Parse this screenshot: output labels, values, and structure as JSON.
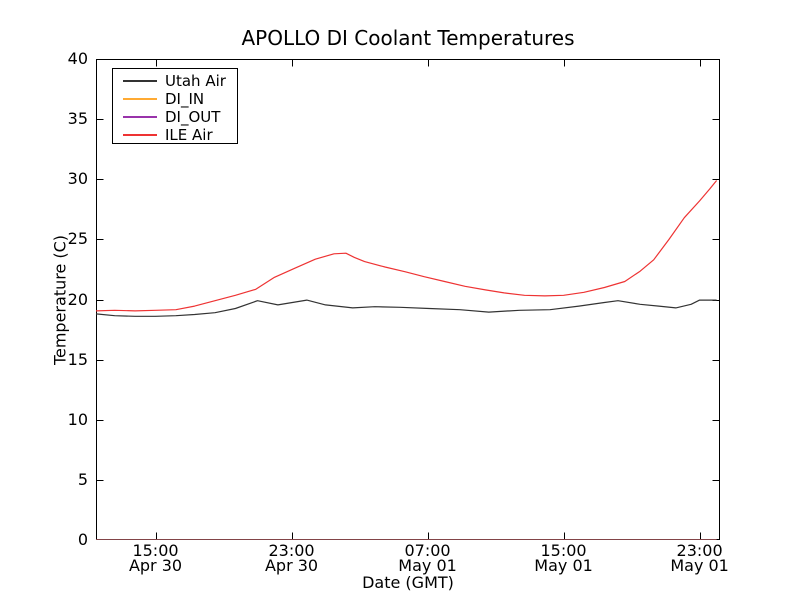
{
  "chart_data": {
    "type": "line",
    "title": "APOLLO DI Coolant Temperatures",
    "xlabel": "Date (GMT)",
    "ylabel": "Temperature (C)",
    "grid": false,
    "background_color": "#ffffff",
    "frame_color": "#000000",
    "x_axis": {
      "unit": "hours since Apr 30 00:00 GMT",
      "range": [
        11.5,
        48.2
      ],
      "major_ticks": [
        {
          "value": 15,
          "label": "15:00\nApr 30"
        },
        {
          "value": 23,
          "label": "23:00\nApr 30"
        },
        {
          "value": 31,
          "label": "07:00\nMay 01"
        },
        {
          "value": 39,
          "label": "15:00\nMay 01"
        },
        {
          "value": 47,
          "label": "23:00\nMay 01"
        }
      ]
    },
    "y_axis": {
      "range": [
        0,
        40
      ],
      "tick_step": 5,
      "ticks": [
        0,
        5,
        10,
        15,
        20,
        25,
        30,
        35,
        40
      ]
    },
    "legend": {
      "position": "upper-left",
      "entries": [
        "Utah Air",
        "DI_IN",
        "DI_OUT",
        "ILE Air"
      ]
    },
    "series": [
      {
        "name": "Utah Air",
        "color": "#333333",
        "opacity": 1,
        "x": [
          11.5,
          12.6,
          13.8,
          15.0,
          16.2,
          17.3,
          18.5,
          19.7,
          21.0,
          22.2,
          23.9,
          25.0,
          26.6,
          27.9,
          29.4,
          31.1,
          32.9,
          34.6,
          36.4,
          38.2,
          39.9,
          41.4,
          42.2,
          43.5,
          44.6,
          45.6,
          46.5,
          47.0,
          48.0
        ],
        "y": [
          18.8,
          18.65,
          18.6,
          18.6,
          18.65,
          18.75,
          18.9,
          19.25,
          19.9,
          19.55,
          19.95,
          19.55,
          19.3,
          19.4,
          19.35,
          19.25,
          19.15,
          18.95,
          19.1,
          19.15,
          19.45,
          19.75,
          19.9,
          19.6,
          19.45,
          19.3,
          19.6,
          19.95,
          19.95
        ]
      },
      {
        "name": "DI_IN",
        "color": "#ffaa33",
        "opacity": 0.9,
        "x": [
          11.5,
          48.0
        ],
        "y": [
          0,
          0
        ]
      },
      {
        "name": "DI_OUT",
        "color": "#9933aa",
        "opacity": 0.55,
        "x": [
          11.5,
          48.0
        ],
        "y": [
          0,
          0
        ]
      },
      {
        "name": "ILE Air",
        "color": "#ee3333",
        "opacity": 1,
        "x": [
          11.5,
          12.6,
          13.8,
          15.0,
          16.2,
          17.3,
          18.5,
          19.7,
          20.9,
          22.0,
          23.2,
          24.4,
          25.5,
          26.2,
          26.7,
          27.3,
          28.5,
          29.7,
          30.8,
          32.0,
          33.2,
          34.4,
          35.5,
          36.7,
          37.9,
          39.0,
          40.2,
          41.4,
          42.6,
          43.5,
          44.3,
          45.2,
          46.1,
          47.0,
          47.6,
          48.0
        ],
        "y": [
          19.05,
          19.1,
          19.05,
          19.1,
          19.15,
          19.45,
          19.9,
          20.35,
          20.85,
          21.85,
          22.6,
          23.35,
          23.8,
          23.85,
          23.5,
          23.15,
          22.7,
          22.3,
          21.9,
          21.5,
          21.1,
          20.8,
          20.55,
          20.35,
          20.3,
          20.35,
          20.6,
          21.0,
          21.5,
          22.35,
          23.3,
          25.0,
          26.8,
          28.2,
          29.2,
          29.9
        ]
      }
    ]
  }
}
